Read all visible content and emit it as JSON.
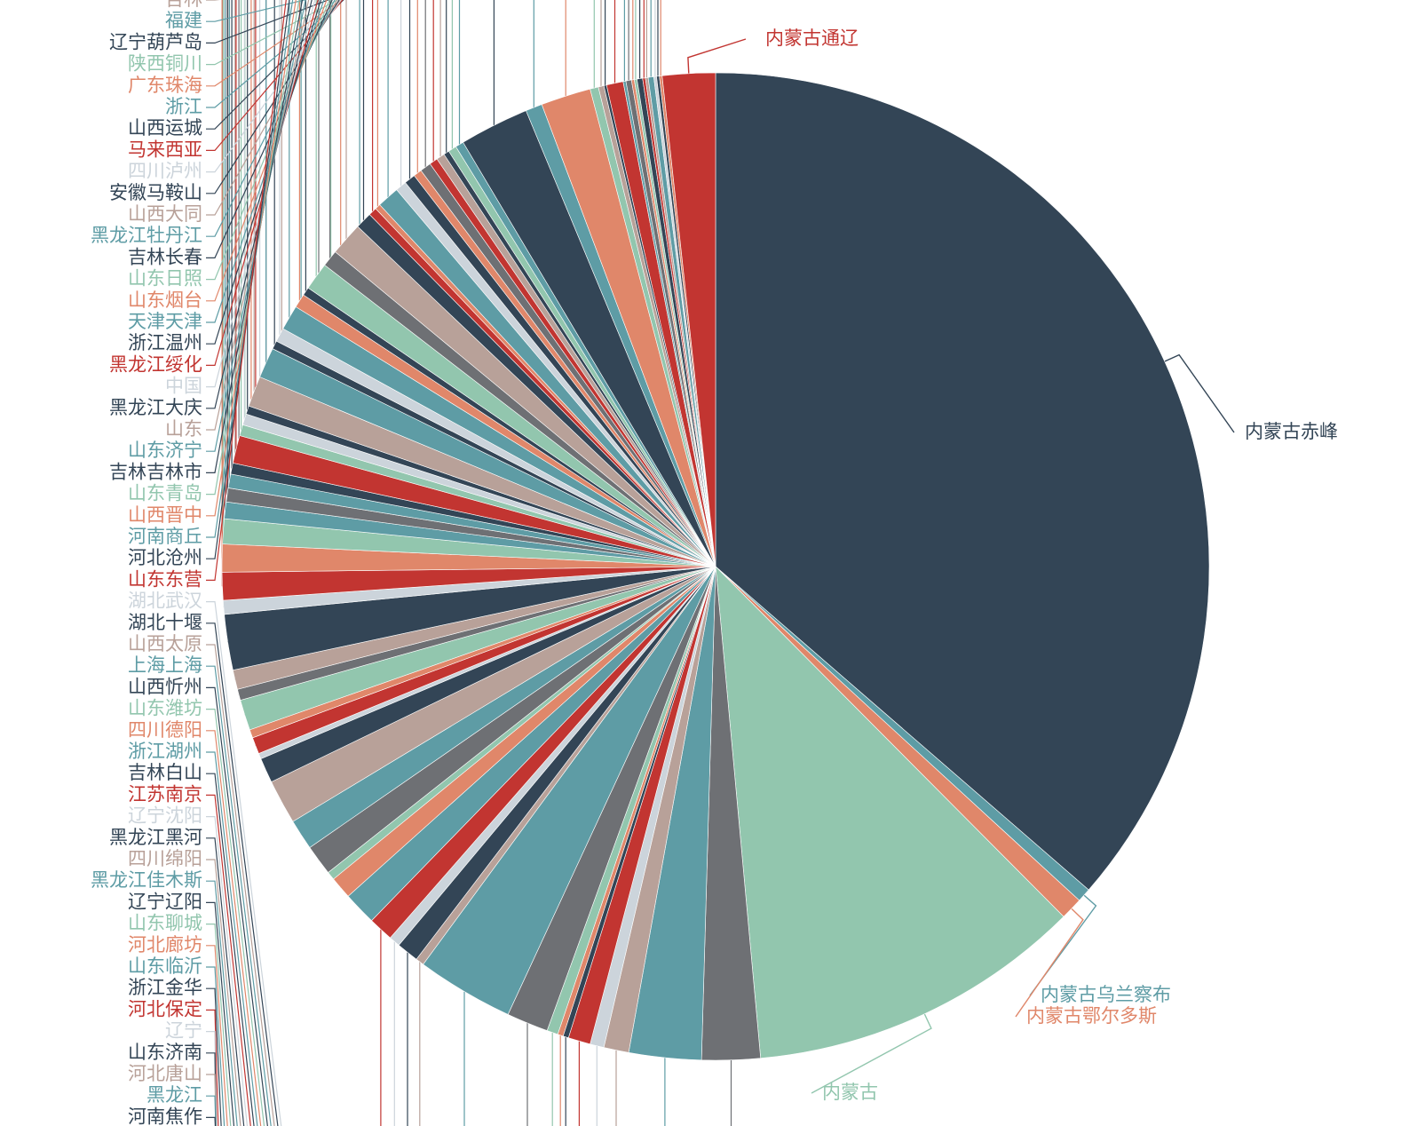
{
  "chart_data": {
    "type": "pie",
    "title": "",
    "slices": [
      {
        "name": "内蒙古赤峰",
        "value": 40.0,
        "color": "#334556"
      },
      {
        "name": "内蒙古乌兰察布",
        "value": 0.5,
        "color": "#5e9ca5"
      },
      {
        "name": "内蒙古鄂尔多斯",
        "value": 0.8,
        "color": "#e0876a"
      },
      {
        "name": "内蒙古",
        "value": 12.1,
        "color": "#92c6ae"
      },
      {
        "name": "",
        "value": 2.1,
        "color": "#6e7074"
      },
      {
        "name": "",
        "value": 2.6,
        "color": "#5e9ca5"
      },
      {
        "name": "",
        "value": 0.9,
        "color": "#b8a199"
      },
      {
        "name": "",
        "value": 0.5,
        "color": "#ccd4db"
      },
      {
        "name": "",
        "value": 0.8,
        "color": "#c23531"
      },
      {
        "name": "",
        "value": 0.2,
        "color": "#334556"
      },
      {
        "name": "",
        "value": 0.2,
        "color": "#e0876a"
      },
      {
        "name": "",
        "value": 0.4,
        "color": "#92c6ae"
      },
      {
        "name": "",
        "value": 1.5,
        "color": "#6e7074"
      },
      {
        "name": "",
        "value": 3.5,
        "color": "#5e9ca5"
      },
      {
        "name": "",
        "value": 0.3,
        "color": "#b8a199"
      },
      {
        "name": "",
        "value": 0.8,
        "color": "#334556"
      },
      {
        "name": "",
        "value": 0.4,
        "color": "#ccd4db"
      },
      {
        "name": "",
        "value": 0.9,
        "color": "#c23531"
      },
      {
        "name": "",
        "value": 1.2,
        "color": "#5e9ca5"
      },
      {
        "name": "",
        "value": 0.8,
        "color": "#e0876a"
      },
      {
        "name": "",
        "value": 0.3,
        "color": "#92c6ae"
      },
      {
        "name": "",
        "value": 1.1,
        "color": "#6e7074"
      },
      {
        "name": "",
        "value": 1.1,
        "color": "#5e9ca5"
      },
      {
        "name": "",
        "value": 1.6,
        "color": "#b8a199"
      },
      {
        "name": "",
        "value": 0.9,
        "color": "#334556"
      },
      {
        "name": "",
        "value": 0.2,
        "color": "#ccd4db"
      },
      {
        "name": "",
        "value": 0.6,
        "color": "#c23531"
      },
      {
        "name": "",
        "value": 0.3,
        "color": "#e0876a"
      },
      {
        "name": "",
        "value": 1.1,
        "color": "#92c6ae"
      },
      {
        "name": "",
        "value": 0.4,
        "color": "#6e7074"
      },
      {
        "name": "",
        "value": 0.7,
        "color": "#b8a199"
      },
      {
        "name": "",
        "value": 2.0,
        "color": "#334556"
      },
      {
        "name": "",
        "value": 0.5,
        "color": "#ccd4db"
      },
      {
        "name": "",
        "value": 1.0,
        "color": "#c23531"
      },
      {
        "name": "",
        "value": 1.0,
        "color": "#e0876a"
      },
      {
        "name": "",
        "value": 0.9,
        "color": "#92c6ae"
      },
      {
        "name": "",
        "value": 0.6,
        "color": "#5e9ca5"
      },
      {
        "name": "",
        "value": 0.5,
        "color": "#6e7074"
      },
      {
        "name": "",
        "value": 0.5,
        "color": "#5e9ca5"
      },
      {
        "name": "",
        "value": 0.4,
        "color": "#334556"
      },
      {
        "name": "",
        "value": 1.0,
        "color": "#c23531"
      },
      {
        "name": "",
        "value": 0.4,
        "color": "#92c6ae"
      },
      {
        "name": "",
        "value": 0.4,
        "color": "#ccd4db"
      },
      {
        "name": "",
        "value": 0.3,
        "color": "#334556"
      },
      {
        "name": "",
        "value": 1.1,
        "color": "#b8a199"
      },
      {
        "name": "",
        "value": 1.1,
        "color": "#5e9ca5"
      },
      {
        "name": "",
        "value": 0.3,
        "color": "#334556"
      },
      {
        "name": "",
        "value": 0.5,
        "color": "#ccd4db"
      },
      {
        "name": "",
        "value": 0.9,
        "color": "#5e9ca5"
      },
      {
        "name": "",
        "value": 0.5,
        "color": "#e0876a"
      },
      {
        "name": "",
        "value": 0.3,
        "color": "#334556"
      },
      {
        "name": "",
        "value": 1.0,
        "color": "#92c6ae"
      },
      {
        "name": "",
        "value": 0.6,
        "color": "#6e7074"
      },
      {
        "name": "",
        "value": 1.2,
        "color": "#b8a199"
      },
      {
        "name": "",
        "value": 0.6,
        "color": "#334556"
      },
      {
        "name": "",
        "value": 0.3,
        "color": "#c23531"
      },
      {
        "name": "",
        "value": 0.2,
        "color": "#e0876a"
      },
      {
        "name": "",
        "value": 0.8,
        "color": "#5e9ca5"
      },
      {
        "name": "",
        "value": 0.4,
        "color": "#ccd4db"
      },
      {
        "name": "",
        "value": 0.4,
        "color": "#334556"
      },
      {
        "name": "",
        "value": 0.3,
        "color": "#e0876a"
      },
      {
        "name": "",
        "value": 0.4,
        "color": "#6e7074"
      },
      {
        "name": "",
        "value": 0.3,
        "color": "#c23531"
      },
      {
        "name": "",
        "value": 0.3,
        "color": "#b8a199"
      },
      {
        "name": "",
        "value": 0.2,
        "color": "#334556"
      },
      {
        "name": "",
        "value": 0.3,
        "color": "#92c6ae"
      },
      {
        "name": "",
        "value": 0.3,
        "color": "#5e9ca5"
      },
      {
        "name": "",
        "value": 2.5,
        "color": "#334556"
      },
      {
        "name": "",
        "value": 0.6,
        "color": "#5e9ca5"
      },
      {
        "name": "",
        "value": 1.8,
        "color": "#e0876a"
      },
      {
        "name": "",
        "value": 0.3,
        "color": "#92c6ae"
      },
      {
        "name": "",
        "value": 0.2,
        "color": "#b8a199"
      },
      {
        "name": "",
        "value": 0.1,
        "color": "#334556"
      },
      {
        "name": "",
        "value": 0.6,
        "color": "#c23531"
      },
      {
        "name": "",
        "value": 0.1,
        "color": "#5e9ca5"
      },
      {
        "name": "",
        "value": 0.2,
        "color": "#6e7074"
      },
      {
        "name": "",
        "value": 0.1,
        "color": "#e0876a"
      },
      {
        "name": "",
        "value": 0.1,
        "color": "#92c6ae"
      },
      {
        "name": "",
        "value": 0.2,
        "color": "#334556"
      },
      {
        "name": "",
        "value": 0.1,
        "color": "#c23531"
      },
      {
        "name": "",
        "value": 0.1,
        "color": "#b8a199"
      },
      {
        "name": "",
        "value": 0.2,
        "color": "#5e9ca5"
      },
      {
        "name": "",
        "value": 0.1,
        "color": "#ccd4db"
      },
      {
        "name": "",
        "value": 0.1,
        "color": "#334556"
      },
      {
        "name": "",
        "value": 0.1,
        "color": "#e0876a"
      },
      {
        "name": "内蒙古通辽",
        "value": 1.9,
        "color": "#c23531"
      }
    ],
    "labels_left": [
      {
        "text": "吉林",
        "color": "#b8a199"
      },
      {
        "text": "福建",
        "color": "#5e9ca5"
      },
      {
        "text": "辽宁葫芦岛",
        "color": "#334556"
      },
      {
        "text": "陕西铜川",
        "color": "#92c6ae"
      },
      {
        "text": "广东珠海",
        "color": "#e0876a"
      },
      {
        "text": "浙江",
        "color": "#5e9ca5"
      },
      {
        "text": "山西运城",
        "color": "#334556"
      },
      {
        "text": "马来西亚",
        "color": "#c23531"
      },
      {
        "text": "四川泸州",
        "color": "#ccd4db"
      },
      {
        "text": "安徽马鞍山",
        "color": "#334556"
      },
      {
        "text": "山西大同",
        "color": "#b8a199"
      },
      {
        "text": "黑龙江牡丹江",
        "color": "#5e9ca5"
      },
      {
        "text": "吉林长春",
        "color": "#334556"
      },
      {
        "text": "山东日照",
        "color": "#92c6ae"
      },
      {
        "text": "山东烟台",
        "color": "#e0876a"
      },
      {
        "text": "天津天津",
        "color": "#5e9ca5"
      },
      {
        "text": "浙江温州",
        "color": "#334556"
      },
      {
        "text": "黑龙江绥化",
        "color": "#c23531"
      },
      {
        "text": "中国",
        "color": "#ccd4db"
      },
      {
        "text": "黑龙江大庆",
        "color": "#334556"
      },
      {
        "text": "山东",
        "color": "#b8a199"
      },
      {
        "text": "山东济宁",
        "color": "#5e9ca5"
      },
      {
        "text": "吉林吉林市",
        "color": "#334556"
      },
      {
        "text": "山东青岛",
        "color": "#92c6ae"
      },
      {
        "text": "山西晋中",
        "color": "#e0876a"
      },
      {
        "text": "河南商丘",
        "color": "#5e9ca5"
      },
      {
        "text": "河北沧州",
        "color": "#334556"
      },
      {
        "text": "山东东营",
        "color": "#c23531"
      },
      {
        "text": "湖北武汉",
        "color": "#ccd4db"
      },
      {
        "text": "湖北十堰",
        "color": "#334556"
      },
      {
        "text": "山西太原",
        "color": "#b8a199"
      },
      {
        "text": "上海上海",
        "color": "#5e9ca5"
      },
      {
        "text": "山西忻州",
        "color": "#334556"
      },
      {
        "text": "山东潍坊",
        "color": "#92c6ae"
      },
      {
        "text": "四川德阳",
        "color": "#e0876a"
      },
      {
        "text": "浙江湖州",
        "color": "#5e9ca5"
      },
      {
        "text": "吉林白山",
        "color": "#334556"
      },
      {
        "text": "江苏南京",
        "color": "#c23531"
      },
      {
        "text": "辽宁沈阳",
        "color": "#ccd4db"
      },
      {
        "text": "黑龙江黑河",
        "color": "#334556"
      },
      {
        "text": "四川绵阳",
        "color": "#b8a199"
      },
      {
        "text": "黑龙江佳木斯",
        "color": "#5e9ca5"
      },
      {
        "text": "辽宁辽阳",
        "color": "#334556"
      },
      {
        "text": "山东聊城",
        "color": "#92c6ae"
      },
      {
        "text": "河北廊坊",
        "color": "#e0876a"
      },
      {
        "text": "山东临沂",
        "color": "#5e9ca5"
      },
      {
        "text": "浙江金华",
        "color": "#334556"
      },
      {
        "text": "河北保定",
        "color": "#c23531"
      },
      {
        "text": "辽宁",
        "color": "#ccd4db"
      },
      {
        "text": "山东济南",
        "color": "#334556"
      },
      {
        "text": "河北唐山",
        "color": "#b8a199"
      },
      {
        "text": "黑龙江",
        "color": "#5e9ca5"
      },
      {
        "text": "河南焦作",
        "color": "#334556"
      }
    ],
    "labels_right": [
      {
        "text": "内蒙古通辽",
        "color": "#c23531"
      },
      {
        "text": "内蒙古赤峰",
        "color": "#334556"
      },
      {
        "text": "内蒙古乌兰察布",
        "color": "#5e9ca5"
      },
      {
        "text": "内蒙古鄂尔多斯",
        "color": "#e0876a"
      },
      {
        "text": "内蒙古",
        "color": "#92c6ae"
      }
    ]
  }
}
